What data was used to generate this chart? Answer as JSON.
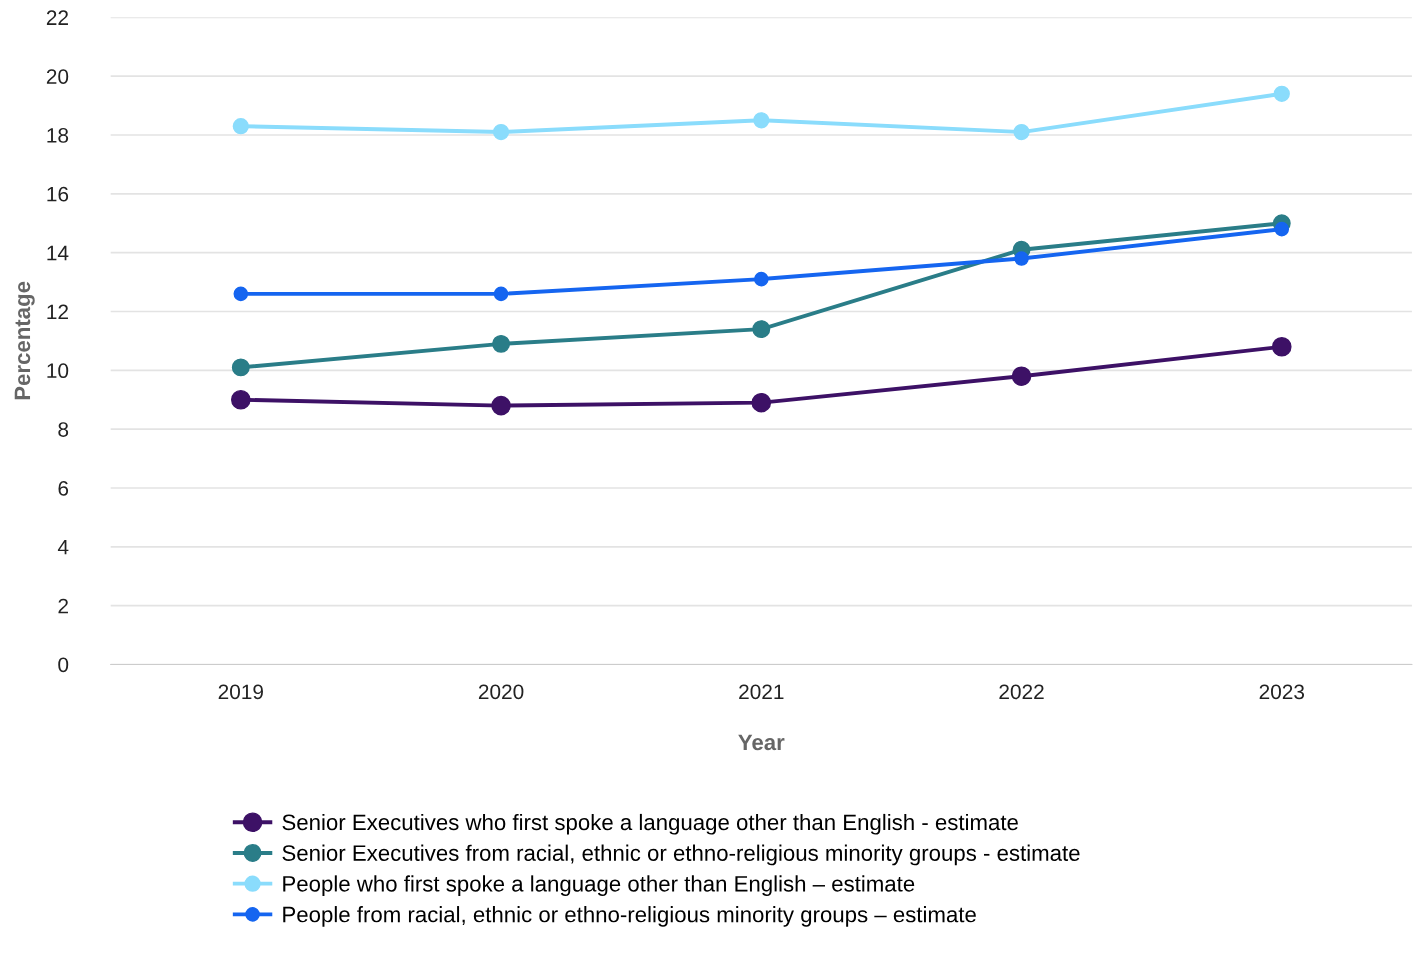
{
  "chart_data": {
    "type": "line",
    "xlabel": "Year",
    "ylabel": "Percentage",
    "categories": [
      "2019",
      "2020",
      "2021",
      "2022",
      "2023"
    ],
    "series": [
      {
        "name": "Senior Executives who first spoke a language other than English - estimate",
        "color": "#3d1166",
        "values": [
          9.0,
          8.8,
          8.9,
          9.8,
          10.8
        ]
      },
      {
        "name": "Senior Executives from racial, ethnic or ethno-religious minority groups - estimate",
        "color": "#2a7d88",
        "values": [
          10.1,
          10.9,
          11.4,
          14.1,
          15.0
        ]
      },
      {
        "name": "People who first spoke a language other than English – estimate",
        "color": "#8adcfc",
        "values": [
          18.3,
          18.1,
          18.5,
          18.1,
          19.4
        ]
      },
      {
        "name": "People from racial, ethnic or ethno-religious minority groups – estimate",
        "color": "#1565f0",
        "values": [
          12.6,
          12.6,
          13.1,
          13.8,
          14.8
        ]
      }
    ],
    "ylim": [
      0,
      22
    ],
    "yticks": [
      0,
      2,
      4,
      6,
      8,
      10,
      12,
      14,
      16,
      18,
      20,
      22
    ],
    "grid": "y",
    "legend": "bottom",
    "marker": "circle",
    "line_style": "solid"
  }
}
